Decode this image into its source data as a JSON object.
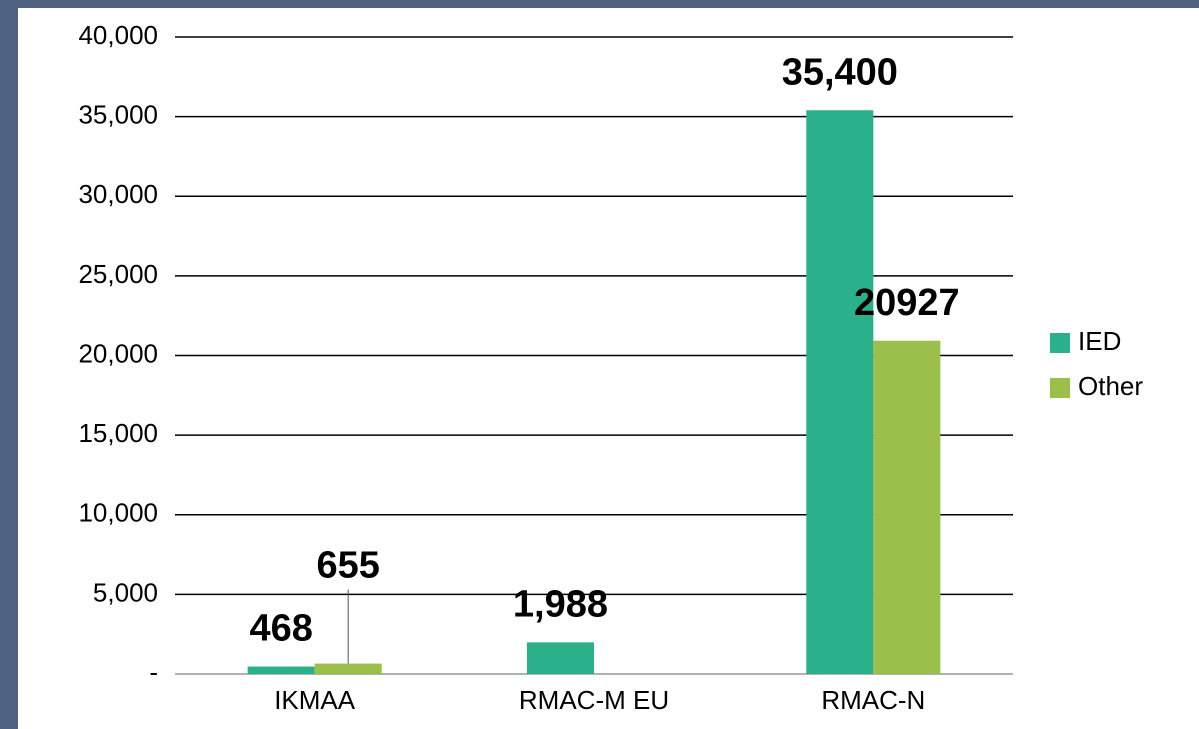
{
  "chart_data": {
    "type": "bar",
    "categories": [
      "IKMAA",
      "RMAC-M EU",
      "RMAC-N"
    ],
    "series": [
      {
        "name": "IED",
        "color": "#2bb08c",
        "values": [
          468,
          1988,
          35400
        ],
        "value_labels": [
          "468",
          "1,988",
          "35,400"
        ]
      },
      {
        "name": "Other",
        "color": "#9bbf4b",
        "values": [
          655,
          null,
          20927
        ],
        "value_labels": [
          "655",
          null,
          "20927"
        ]
      }
    ],
    "ylim": [
      0,
      40000
    ],
    "yticks": [
      {
        "value": 0,
        "label": "-"
      },
      {
        "value": 5000,
        "label": "5,000"
      },
      {
        "value": 10000,
        "label": "10,000"
      },
      {
        "value": 15000,
        "label": "15,000"
      },
      {
        "value": 20000,
        "label": "20,000"
      },
      {
        "value": 25000,
        "label": "25,000"
      },
      {
        "value": 30000,
        "label": "30,000"
      },
      {
        "value": 35000,
        "label": "35,000"
      },
      {
        "value": 40000,
        "label": "40,000"
      }
    ],
    "grid": true,
    "legend": "right"
  }
}
